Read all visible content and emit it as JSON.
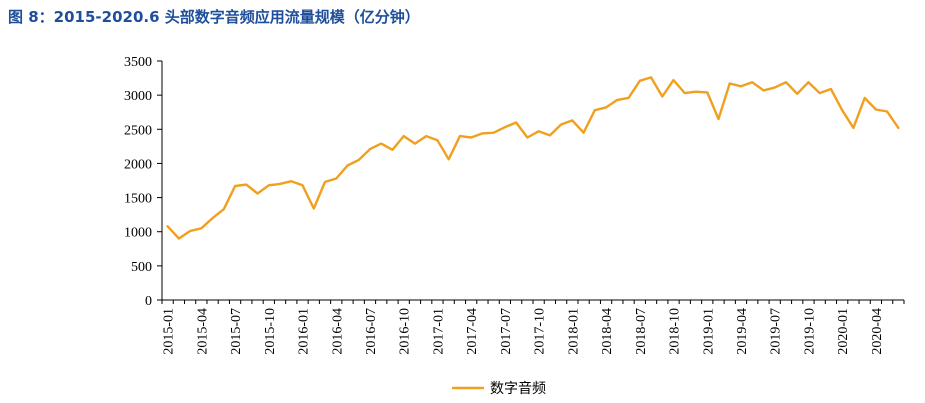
{
  "title": "图 8：2015-2020.6 头部数字音频应用流量规模（亿分钟）",
  "chart_data": {
    "type": "line",
    "title": "图 8：2015-2020.6 头部数字音频应用流量规模（亿分钟）",
    "xlabel": "",
    "ylabel": "",
    "ylim": [
      0,
      3500
    ],
    "yticks": [
      0,
      500,
      1000,
      1500,
      2000,
      2500,
      3000,
      3500
    ],
    "grid": false,
    "legend_position": "bottom-center",
    "x_tick_labels": [
      "2015-01",
      "2015-04",
      "2015-07",
      "2015-10",
      "2016-01",
      "2016-04",
      "2016-07",
      "2016-10",
      "2017-01",
      "2017-04",
      "2017-07",
      "2017-10",
      "2018-01",
      "2018-04",
      "2018-07",
      "2018-10",
      "2019-01",
      "2019-04",
      "2019-07",
      "2019-10",
      "2020-01",
      "2020-04"
    ],
    "x": [
      "2015-01",
      "2015-02",
      "2015-03",
      "2015-04",
      "2015-05",
      "2015-06",
      "2015-07",
      "2015-08",
      "2015-09",
      "2015-10",
      "2015-11",
      "2015-12",
      "2016-01",
      "2016-02",
      "2016-03",
      "2016-04",
      "2016-05",
      "2016-06",
      "2016-07",
      "2016-08",
      "2016-09",
      "2016-10",
      "2016-11",
      "2016-12",
      "2017-01",
      "2017-02",
      "2017-03",
      "2017-04",
      "2017-05",
      "2017-06",
      "2017-07",
      "2017-08",
      "2017-09",
      "2017-10",
      "2017-11",
      "2017-12",
      "2018-01",
      "2018-02",
      "2018-03",
      "2018-04",
      "2018-05",
      "2018-06",
      "2018-07",
      "2018-08",
      "2018-09",
      "2018-10",
      "2018-11",
      "2018-12",
      "2019-01",
      "2019-02",
      "2019-03",
      "2019-04",
      "2019-05",
      "2019-06",
      "2019-07",
      "2019-08",
      "2019-09",
      "2019-10",
      "2019-11",
      "2019-12",
      "2020-01",
      "2020-02",
      "2020-03",
      "2020-04",
      "2020-05",
      "2020-06"
    ],
    "series": [
      {
        "name": "数字音频",
        "color": "#f0a01e",
        "values": [
          1080,
          900,
          1010,
          1050,
          1200,
          1330,
          1670,
          1690,
          1560,
          1680,
          1700,
          1740,
          1680,
          1340,
          1730,
          1780,
          1970,
          2050,
          2210,
          2290,
          2200,
          2400,
          2290,
          2400,
          2340,
          2060,
          2400,
          2380,
          2440,
          2450,
          2530,
          2600,
          2380,
          2470,
          2410,
          2570,
          2630,
          2450,
          2780,
          2820,
          2930,
          2960,
          3210,
          3260,
          2980,
          3220,
          3030,
          3050,
          3040,
          2650,
          3170,
          3130,
          3190,
          3070,
          3110,
          3190,
          3020,
          3190,
          3030,
          3090,
          2780,
          2520,
          2960,
          2790,
          2760,
          2520
        ]
      }
    ]
  }
}
